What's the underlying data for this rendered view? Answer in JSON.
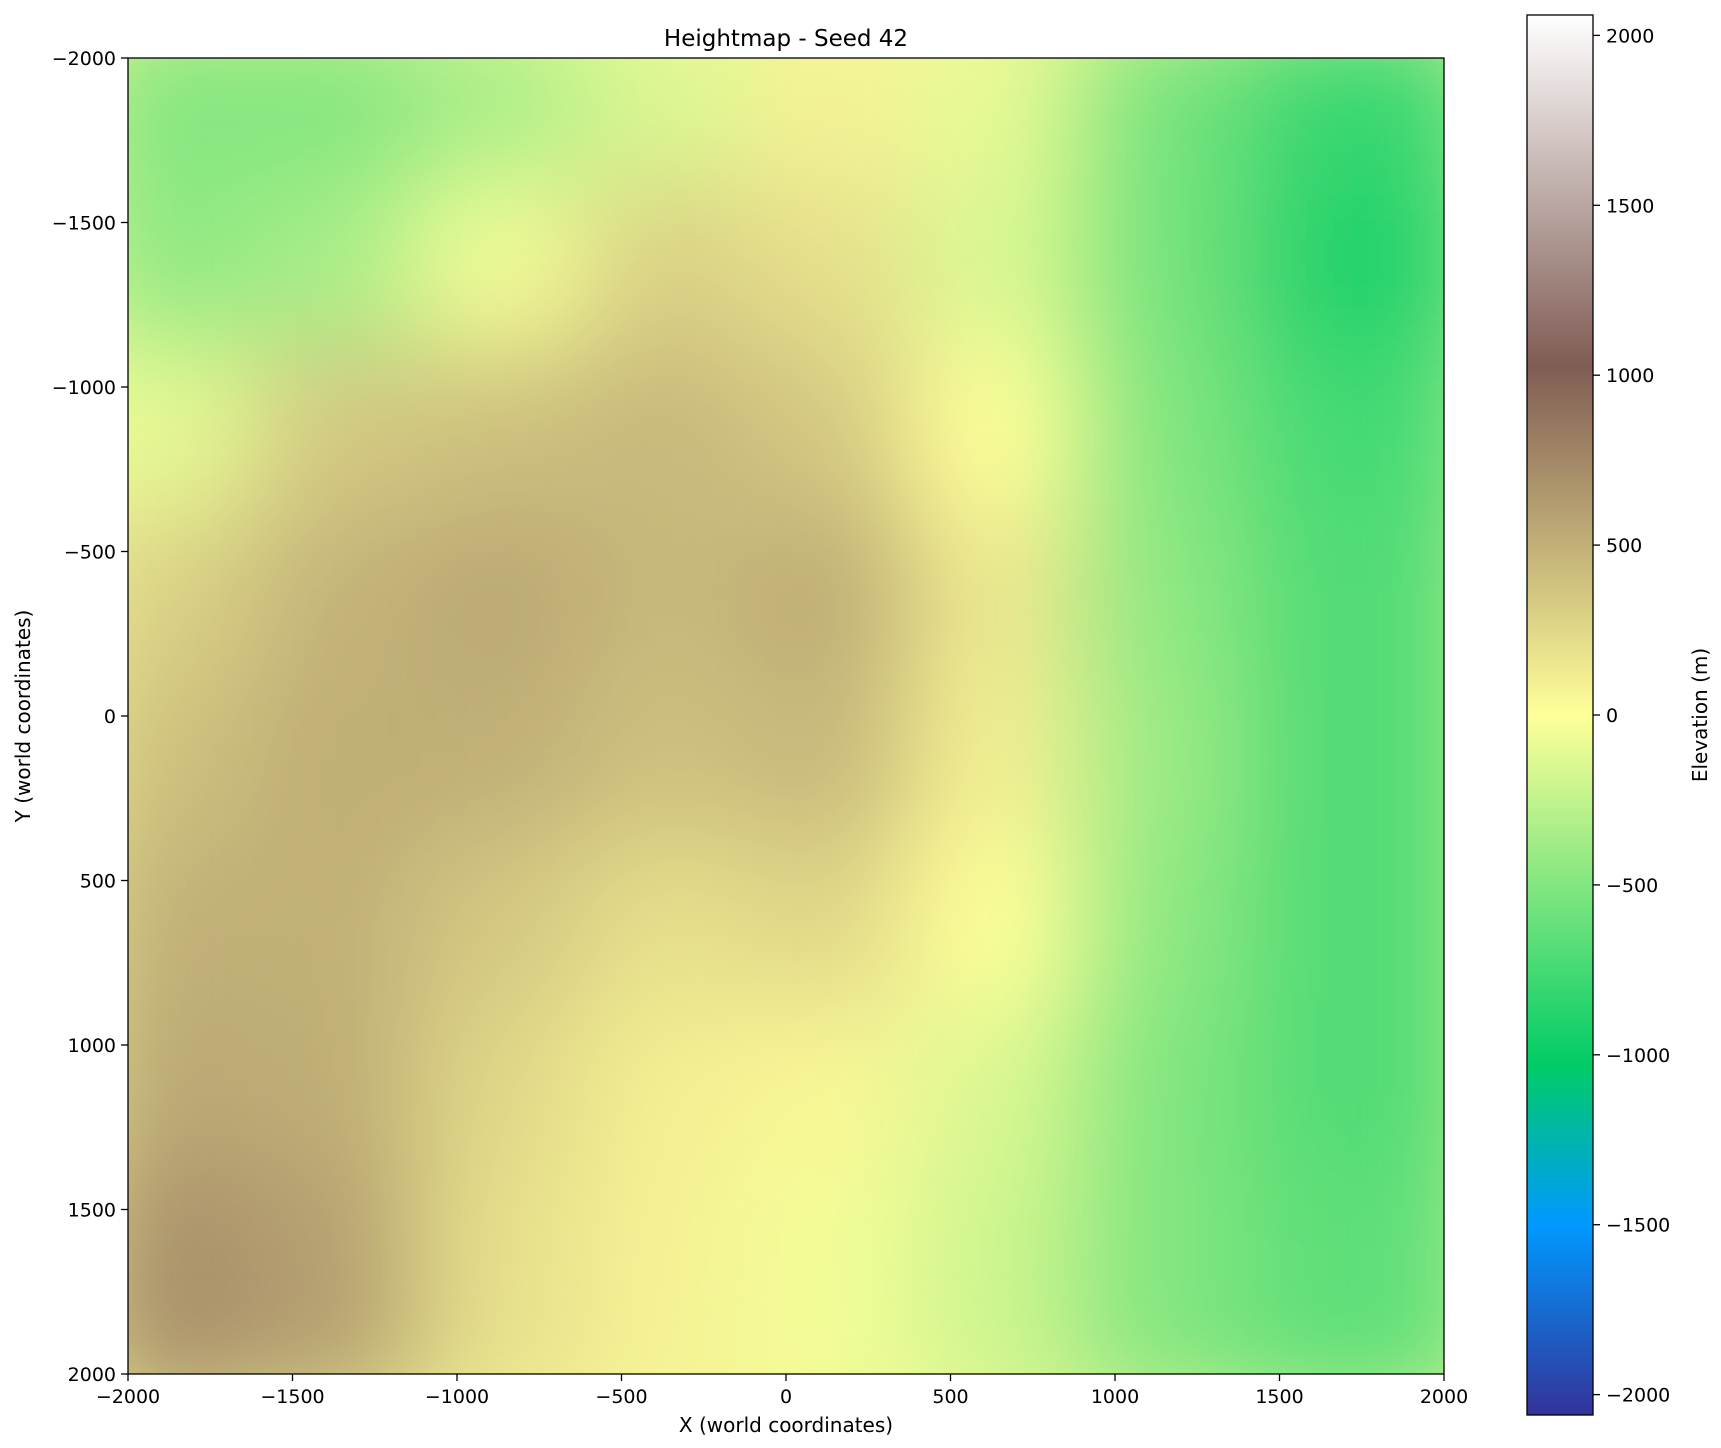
{
  "chart_data": {
    "type": "heatmap",
    "title": "Heightmap - Seed 42",
    "xlabel": "X (world coordinates)",
    "ylabel": "Y (world coordinates)",
    "xlim": [
      -2000,
      2000
    ],
    "ylim": [
      -2000,
      2000
    ],
    "y_inverted": true,
    "x_ticks": [
      -2000,
      -1500,
      -1000,
      -500,
      0,
      500,
      1000,
      1500,
      2000
    ],
    "y_ticks": [
      -2000,
      -1500,
      -1000,
      -500,
      0,
      500,
      1000,
      1500,
      2000
    ],
    "colormap": "terrain",
    "grid": false,
    "colorbar": {
      "label": "Elevation (m)",
      "range": [
        -2060,
        2060
      ],
      "ticks": [
        -2000,
        -1500,
        -1000,
        -500,
        0,
        500,
        1000,
        1500,
        2000
      ],
      "stops": [
        {
          "value": -2060,
          "color": "#333399"
        },
        {
          "value": -1500,
          "color": "#0099ff"
        },
        {
          "value": -1030,
          "color": "#00cc66"
        },
        {
          "value": 0,
          "color": "#ffff99"
        },
        {
          "value": 1030,
          "color": "#805c54"
        },
        {
          "value": 2060,
          "color": "#ffffff"
        }
      ]
    },
    "elevation_grid": {
      "cols": 8,
      "rows": 8,
      "x_start": -1750,
      "x_step": 500,
      "y_start": -1750,
      "y_step": 500,
      "values": [
        [
          -500,
          -500,
          -350,
          -150,
          80,
          -100,
          -550,
          -800
        ],
        [
          -450,
          -350,
          -50,
          300,
          200,
          -150,
          -550,
          -900
        ],
        [
          -100,
          350,
          400,
          450,
          350,
          0,
          -500,
          -750
        ],
        [
          300,
          480,
          550,
          450,
          520,
          150,
          -450,
          -700
        ],
        [
          400,
          520,
          500,
          400,
          450,
          100,
          -400,
          -700
        ],
        [
          500,
          500,
          350,
          200,
          250,
          0,
          -450,
          -700
        ],
        [
          550,
          520,
          250,
          100,
          50,
          -150,
          -500,
          -700
        ],
        [
          700,
          600,
          200,
          80,
          -50,
          -200,
          -500,
          -650
        ]
      ]
    }
  }
}
